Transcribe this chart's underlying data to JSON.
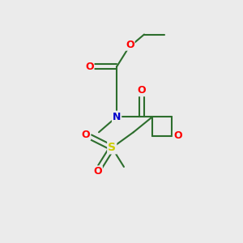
{
  "background_color": "#ebebeb",
  "atom_colors": {
    "O": "#ff0000",
    "N": "#0000cc",
    "S": "#cccc00"
  },
  "bond_color": "#2d6e2d",
  "figsize": [
    3.0,
    3.0
  ],
  "dpi": 100
}
